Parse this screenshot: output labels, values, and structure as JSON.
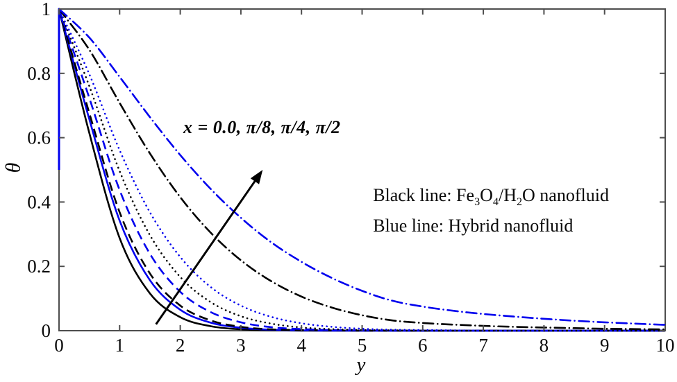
{
  "figure": {
    "background": "#ffffff",
    "axis_color": "#4d4d4d",
    "tick_label_color": "#0a0a0a",
    "black": "#000000",
    "blue": "#0000ee"
  },
  "chart_data": {
    "type": "line",
    "title": "",
    "xlabel": "y",
    "ylabel": "θ",
    "xlim": [
      0,
      10
    ],
    "ylim": [
      0,
      1
    ],
    "grid": false,
    "x_ticks": [
      0,
      1,
      2,
      3,
      4,
      5,
      6,
      7,
      8,
      9,
      10
    ],
    "y_ticks": [
      0,
      0.2,
      0.4,
      0.6,
      0.8,
      1
    ],
    "x": [
      0,
      0.5,
      1,
      1.5,
      2,
      2.5,
      3,
      3.5,
      4,
      4.5,
      5,
      5.5,
      6,
      6.5,
      7,
      7.5,
      8,
      8.5,
      9,
      9.5,
      10
    ],
    "series": [
      {
        "id": "black-solid",
        "name": "Fe3O4/H2O nanofluid, x = 0.0",
        "fluid": "Fe3O4/H2O nanofluid",
        "x_value": "0.0",
        "color": "#000000",
        "style": "solid",
        "y": [
          1,
          0.614,
          0.288,
          0.116,
          0.042,
          0.014,
          0.004,
          0.001,
          0,
          0,
          0,
          0,
          0,
          0,
          0,
          0,
          0,
          0,
          0,
          0,
          0
        ]
      },
      {
        "id": "blue-solid",
        "name": "Hybrid nanofluid, x = 0.0",
        "fluid": "Hybrid nanofluid",
        "x_value": "0.0",
        "color": "#0000ee",
        "style": "solid",
        "y": [
          1,
          0.657,
          0.342,
          0.157,
          0.065,
          0.025,
          0.009,
          0.003,
          0.001,
          0,
          0,
          0,
          0,
          0,
          0,
          0,
          0,
          0,
          0,
          0,
          0
        ]
      },
      {
        "id": "black-dashed",
        "name": "Fe3O4/H2O nanofluid, x = π/8",
        "fluid": "Fe3O4/H2O nanofluid",
        "x_value": "π/8",
        "color": "#000000",
        "style": "dashed",
        "y": [
          1,
          0.676,
          0.368,
          0.178,
          0.078,
          0.032,
          0.012,
          0.004,
          0.002,
          0.001,
          0,
          0,
          0,
          0,
          0,
          0,
          0,
          0,
          0,
          0,
          0
        ]
      },
      {
        "id": "blue-dashed",
        "name": "Hybrid nanofluid, x = π/8",
        "fluid": "Hybrid nanofluid",
        "x_value": "π/8",
        "color": "#0000ee",
        "style": "dashed",
        "y": [
          1,
          0.723,
          0.437,
          0.239,
          0.121,
          0.058,
          0.026,
          0.011,
          0.005,
          0.002,
          0.001,
          0,
          0,
          0,
          0,
          0,
          0,
          0,
          0,
          0,
          0
        ]
      },
      {
        "id": "black-dotted",
        "name": "Fe3O4/H2O nanofluid, x = π/4",
        "fluid": "Fe3O4/H2O nanofluid",
        "x_value": "π/4",
        "color": "#000000",
        "style": "dotted",
        "y": [
          1,
          0.76,
          0.496,
          0.297,
          0.167,
          0.089,
          0.045,
          0.022,
          0.01,
          0.005,
          0.002,
          0.001,
          0,
          0,
          0,
          0,
          0,
          0,
          0,
          0,
          0
        ]
      },
      {
        "id": "blue-dotted",
        "name": "Hybrid nanofluid, x = π/4",
        "fluid": "Hybrid nanofluid",
        "x_value": "π/4",
        "color": "#0000ee",
        "style": "dotted",
        "y": [
          1,
          0.797,
          0.561,
          0.368,
          0.229,
          0.136,
          0.078,
          0.043,
          0.023,
          0.012,
          0.006,
          0.003,
          0.002,
          0.001,
          0,
          0,
          0,
          0,
          0,
          0,
          0
        ]
      },
      {
        "id": "black-dashdot",
        "name": "Fe3O4/H2O nanofluid, x = π/2",
        "fluid": "Fe3O4/H2O nanofluid",
        "x_value": "π/2",
        "color": "#000000",
        "style": "dashdot",
        "y": [
          1,
          0.873,
          0.708,
          0.551,
          0.415,
          0.305,
          0.219,
          0.154,
          0.106,
          0.072,
          0.048,
          0.032,
          0.024,
          0.019,
          0.015,
          0.012,
          0.01,
          0.008,
          0.006,
          0.005,
          0.004
        ]
      },
      {
        "id": "blue-dashdot",
        "name": "Hybrid nanofluid, x = π/2",
        "fluid": "Hybrid nanofluid",
        "x_value": "π/2",
        "color": "#0000ee",
        "style": "dashdot",
        "y": [
          1,
          0.911,
          0.789,
          0.664,
          0.546,
          0.441,
          0.351,
          0.275,
          0.214,
          0.164,
          0.124,
          0.093,
          0.075,
          0.062,
          0.052,
          0.044,
          0.037,
          0.031,
          0.026,
          0.022,
          0.018
        ]
      }
    ],
    "left_axis_overlay": {
      "color": "#0000ee",
      "x": 0,
      "theta_from": 0.5,
      "theta_to": 1.0
    },
    "annotation": {
      "text": "x = 0.0, π/8, π/4, π/2",
      "x": 2.05,
      "y": 0.655,
      "arrow": {
        "x1": 1.6,
        "y1": 0.02,
        "x2": 3.36,
        "y2": 0.5,
        "color": "#000000"
      }
    },
    "note": {
      "x": 5.18,
      "lines": [
        {
          "y": 0.452,
          "parts": [
            {
              "t": "Black line: Fe"
            },
            {
              "t": "3",
              "sub": true
            },
            {
              "t": "O"
            },
            {
              "t": "4",
              "sub": true
            },
            {
              "t": "/H"
            },
            {
              "t": "2",
              "sub": true
            },
            {
              "t": "O nanofluid"
            }
          ]
        },
        {
          "y": 0.358,
          "parts": [
            {
              "t": "Blue line: Hybrid nanofluid"
            }
          ]
        }
      ]
    }
  }
}
